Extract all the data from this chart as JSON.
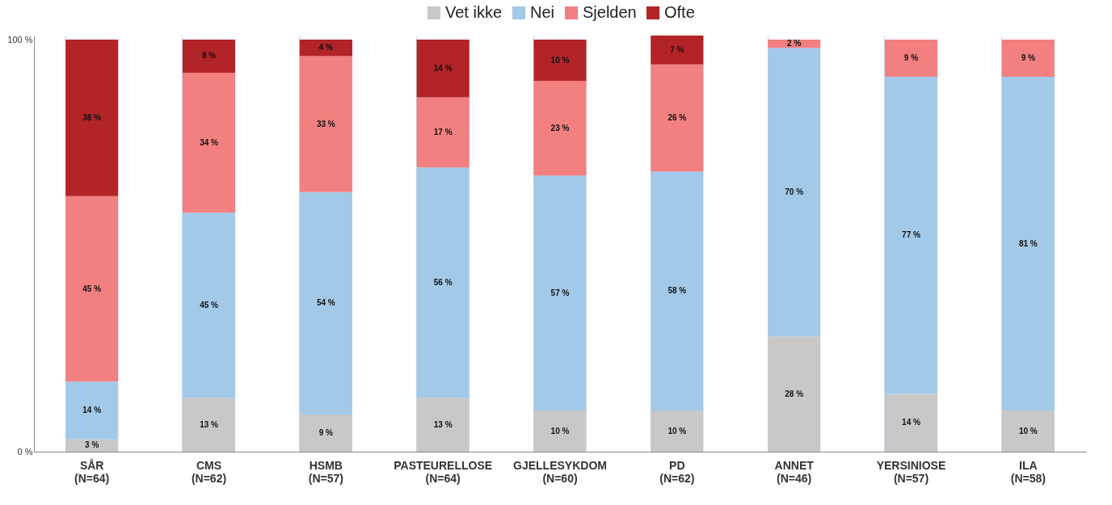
{
  "chart_data": {
    "type": "bar",
    "stacked": true,
    "legend": "top",
    "grid": "x",
    "categories": [
      "SÅR\n(N=64)",
      "CMS\n(N=62)",
      "HSMB\n(N=57)",
      "PASTEURELLOSE\n(N=64)",
      "GJELLESYKDOM\n(N=60)",
      "PD\n(N=62)",
      "ANNET\n(N=46)",
      "YERSINIOSE\n(N=57)",
      "ILA\n(N=58)"
    ],
    "ylim": [
      0,
      101
    ],
    "yticks": [
      {
        "value": 0,
        "label": "0 %"
      },
      {
        "value": 100,
        "label": "100 %"
      }
    ],
    "series": [
      {
        "name": "Vet ikke",
        "color": "#c8c8c8",
        "values": [
          3,
          13,
          9,
          13,
          10,
          10,
          28,
          14,
          10
        ],
        "value_labels": [
          "3 %",
          "13 %",
          "9 %",
          "13 %",
          "10 %",
          "10 %",
          "28 %",
          "14 %",
          "10 %"
        ]
      },
      {
        "name": "Nei",
        "color": "#a3c9e8",
        "values": [
          14,
          45,
          54,
          56,
          57,
          58,
          70,
          77,
          81
        ],
        "value_labels": [
          "14 %",
          "45 %",
          "54 %",
          "56 %",
          "57 %",
          "58 %",
          "70 %",
          "77 %",
          "81 %"
        ]
      },
      {
        "name": "Sjelden",
        "color": "#f28080",
        "values": [
          45,
          34,
          33,
          17,
          23,
          26,
          2,
          9,
          9
        ],
        "value_labels": [
          "45 %",
          "34 %",
          "33 %",
          "17 %",
          "23 %",
          "26 %",
          "2 %",
          "9 %",
          "9 %"
        ]
      },
      {
        "name": "Ofte",
        "color": "#b22428",
        "values": [
          38,
          8,
          4,
          14,
          10,
          7,
          null,
          null,
          null
        ],
        "value_labels": [
          "38 %",
          "8 %",
          "4 %",
          "14 %",
          "10 %",
          "7 %",
          null,
          null,
          null
        ]
      }
    ]
  }
}
